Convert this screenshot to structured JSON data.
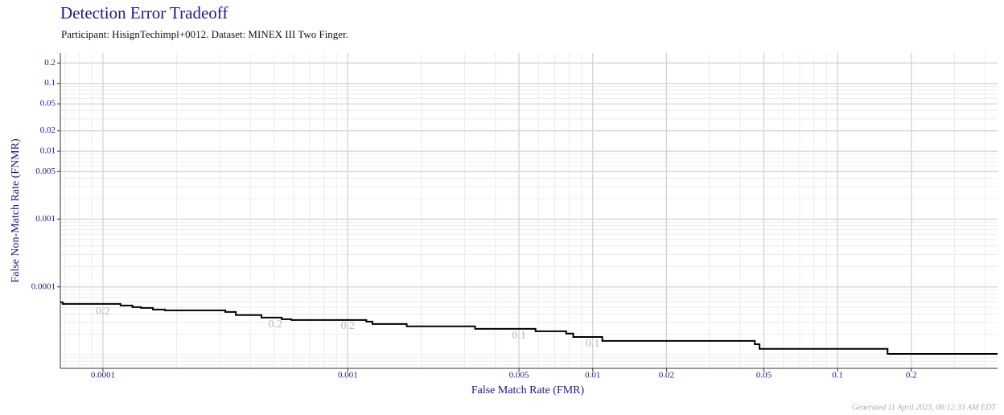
{
  "chart_data": {
    "type": "step",
    "title": "Detection Error Tradeoff",
    "subtitle": "Participant: HisignTechimpl+0012. Dataset: MINEX III Two Finger.",
    "xlabel": "False Match Rate (FMR)",
    "ylabel": "False Non-Match Rate (FNMR)",
    "footer": "Generated 11 April 2023, 08:12:33 AM EDT",
    "xscale": "log",
    "yscale": "log",
    "grid": true,
    "color": "#000000",
    "xlim": [
      6.7e-05,
      0.45
    ],
    "ylim": [
      6.3e-06,
      0.28
    ],
    "xticks": [
      0.0001,
      0.001,
      0.005,
      0.01,
      0.02,
      0.05,
      0.1,
      0.2
    ],
    "yticks": [
      0.0001,
      0.001,
      0.005,
      0.01,
      0.02,
      0.05,
      0.1,
      0.2
    ],
    "x": [
      6.7e-05,
      6.85e-05,
      0.000118,
      0.000132,
      0.000143,
      0.00016,
      0.000179,
      0.000316,
      0.000349,
      0.000444,
      0.000537,
      0.000588,
      0.00119,
      0.00126,
      0.00174,
      0.00331,
      0.00584,
      0.00779,
      0.00833,
      0.01094,
      0.0459,
      0.048,
      0.16,
      0.45
    ],
    "y": [
      5.93e-05,
      5.62e-05,
      5.32e-05,
      5.04e-05,
      4.9e-05,
      4.64e-05,
      4.52e-05,
      4.28e-05,
      3.84e-05,
      3.53e-05,
      3.34e-05,
      3.25e-05,
      3.08e-05,
      2.84e-05,
      2.62e-05,
      2.41e-05,
      2.22e-05,
      2.05e-05,
      1.83e-05,
      1.6e-05,
      1.43e-05,
      1.22e-05,
      1.03e-05,
      1.03e-05
    ],
    "annotations": [
      {
        "x": 0.0001,
        "y": 4.28e-05,
        "text": "0.2"
      },
      {
        "x": 0.000506,
        "y": 2.76e-05,
        "text": "0.2"
      },
      {
        "x": 0.001,
        "y": 2.62e-05,
        "text": "0.2"
      },
      {
        "x": 0.005,
        "y": 1.88e-05,
        "text": "0.1"
      },
      {
        "x": 0.01,
        "y": 1.43e-05,
        "text": "0.1"
      }
    ]
  }
}
